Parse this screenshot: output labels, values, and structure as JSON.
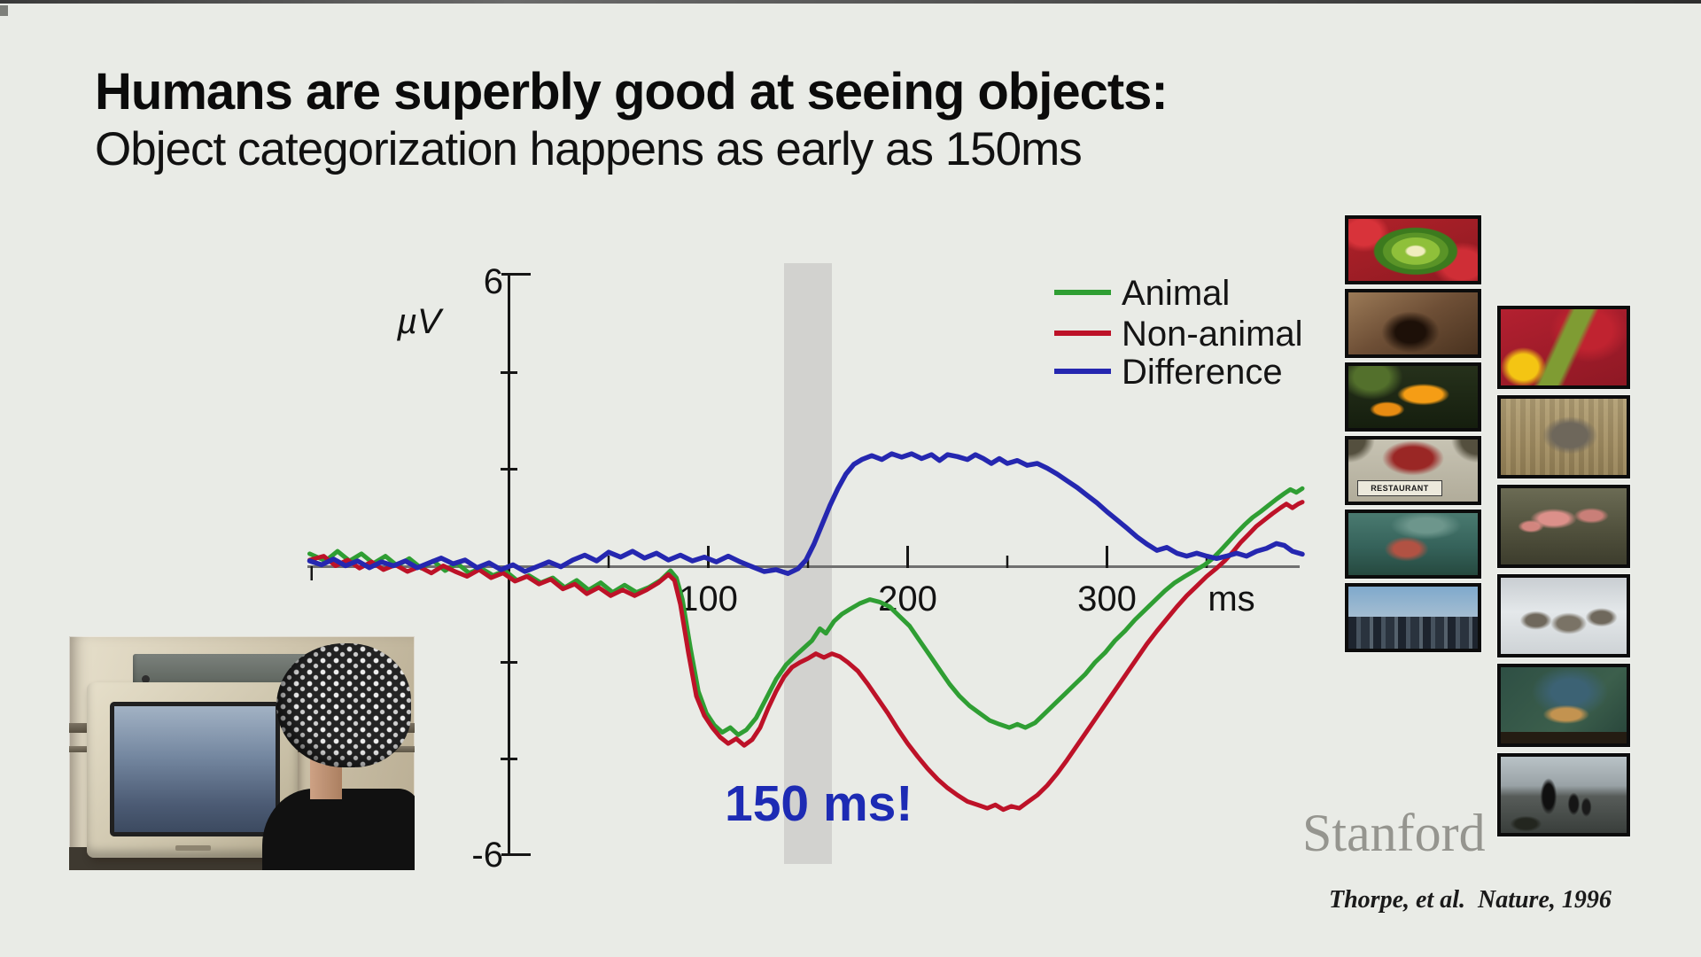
{
  "slide": {
    "title_line1": "Humans are superbly good at seeing objects:",
    "title_line2": "Object categorization happens as early as 150ms",
    "annotation_150ms": "150 ms!",
    "watermark": "Stanford",
    "citation": "Thorpe, et al.  Nature, 1996"
  },
  "chart_data": {
    "type": "line",
    "title": "",
    "xlabel": "ms",
    "ylabel": "µV",
    "xlim": [
      -100,
      400
    ],
    "ylim": [
      -6,
      6
    ],
    "grid": false,
    "legend_position": "top-right",
    "y_top_label": "6",
    "y_bottom_label": "-6",
    "x_unit": "ms",
    "x_tick_labels": [
      "100",
      "200",
      "300"
    ],
    "x_ticks_major": [
      100,
      200,
      300
    ],
    "x_ticks_minor": [
      50,
      150,
      250,
      350
    ],
    "y_ticks": [
      -4,
      -2,
      2,
      4
    ],
    "highlight_band_ms": [
      138,
      162
    ],
    "series": [
      {
        "name": "Animal",
        "color": "#2f9e33",
        "points": [
          [
            -100,
            0.25
          ],
          [
            -92,
            0.1
          ],
          [
            -86,
            0.3
          ],
          [
            -80,
            0.1
          ],
          [
            -74,
            0.25
          ],
          [
            -68,
            0.05
          ],
          [
            -62,
            0.2
          ],
          [
            -56,
            0.0
          ],
          [
            -50,
            0.15
          ],
          [
            -44,
            -0.05
          ],
          [
            -38,
            0.1
          ],
          [
            -32,
            -0.1
          ],
          [
            -26,
            0.05
          ],
          [
            -20,
            -0.15
          ],
          [
            -14,
            -0.05
          ],
          [
            -8,
            -0.2
          ],
          [
            -2,
            -0.1
          ],
          [
            4,
            -0.3
          ],
          [
            10,
            -0.2
          ],
          [
            16,
            -0.35
          ],
          [
            22,
            -0.25
          ],
          [
            28,
            -0.45
          ],
          [
            34,
            -0.3
          ],
          [
            40,
            -0.5
          ],
          [
            46,
            -0.35
          ],
          [
            52,
            -0.55
          ],
          [
            58,
            -0.4
          ],
          [
            64,
            -0.55
          ],
          [
            70,
            -0.45
          ],
          [
            76,
            -0.3
          ],
          [
            81,
            -0.1
          ],
          [
            84,
            -0.25
          ],
          [
            87,
            -0.7
          ],
          [
            91,
            -1.7
          ],
          [
            95,
            -2.6
          ],
          [
            99,
            -3.05
          ],
          [
            103,
            -3.3
          ],
          [
            107,
            -3.45
          ],
          [
            111,
            -3.35
          ],
          [
            115,
            -3.5
          ],
          [
            119,
            -3.4
          ],
          [
            124,
            -3.15
          ],
          [
            129,
            -2.75
          ],
          [
            134,
            -2.35
          ],
          [
            139,
            -2.05
          ],
          [
            144,
            -1.85
          ],
          [
            148,
            -1.7
          ],
          [
            152,
            -1.55
          ],
          [
            156,
            -1.3
          ],
          [
            159,
            -1.4
          ],
          [
            163,
            -1.15
          ],
          [
            167,
            -1.0
          ],
          [
            171,
            -0.9
          ],
          [
            176,
            -0.78
          ],
          [
            181,
            -0.7
          ],
          [
            186,
            -0.75
          ],
          [
            191,
            -0.85
          ],
          [
            196,
            -1.05
          ],
          [
            201,
            -1.25
          ],
          [
            206,
            -1.55
          ],
          [
            211,
            -1.85
          ],
          [
            216,
            -2.15
          ],
          [
            221,
            -2.45
          ],
          [
            226,
            -2.7
          ],
          [
            231,
            -2.9
          ],
          [
            236,
            -3.05
          ],
          [
            241,
            -3.2
          ],
          [
            246,
            -3.28
          ],
          [
            251,
            -3.35
          ],
          [
            255,
            -3.28
          ],
          [
            259,
            -3.35
          ],
          [
            264,
            -3.25
          ],
          [
            269,
            -3.05
          ],
          [
            274,
            -2.85
          ],
          [
            279,
            -2.65
          ],
          [
            284,
            -2.45
          ],
          [
            289,
            -2.25
          ],
          [
            294,
            -2.0
          ],
          [
            299,
            -1.8
          ],
          [
            304,
            -1.55
          ],
          [
            309,
            -1.35
          ],
          [
            314,
            -1.12
          ],
          [
            319,
            -0.92
          ],
          [
            324,
            -0.72
          ],
          [
            329,
            -0.52
          ],
          [
            334,
            -0.35
          ],
          [
            339,
            -0.22
          ],
          [
            344,
            -0.1
          ],
          [
            349,
            0.02
          ],
          [
            353,
            0.15
          ],
          [
            357,
            0.32
          ],
          [
            361,
            0.5
          ],
          [
            365,
            0.68
          ],
          [
            369,
            0.85
          ],
          [
            373,
            1.0
          ],
          [
            377,
            1.12
          ],
          [
            381,
            1.25
          ],
          [
            385,
            1.38
          ],
          [
            389,
            1.5
          ],
          [
            392,
            1.58
          ],
          [
            395,
            1.52
          ],
          [
            398,
            1.6
          ]
        ]
      },
      {
        "name": "Non-animal",
        "color": "#bd1228",
        "points": [
          [
            -100,
            0.12
          ],
          [
            -93,
            0.2
          ],
          [
            -87,
            0.0
          ],
          [
            -81,
            0.12
          ],
          [
            -75,
            -0.05
          ],
          [
            -69,
            0.08
          ],
          [
            -63,
            -0.08
          ],
          [
            -57,
            0.02
          ],
          [
            -51,
            -0.12
          ],
          [
            -45,
            -0.02
          ],
          [
            -39,
            -0.15
          ],
          [
            -33,
            0.0
          ],
          [
            -27,
            -0.12
          ],
          [
            -21,
            -0.22
          ],
          [
            -15,
            -0.08
          ],
          [
            -9,
            -0.25
          ],
          [
            -3,
            -0.15
          ],
          [
            3,
            -0.32
          ],
          [
            9,
            -0.22
          ],
          [
            15,
            -0.38
          ],
          [
            21,
            -0.28
          ],
          [
            27,
            -0.48
          ],
          [
            33,
            -0.38
          ],
          [
            39,
            -0.58
          ],
          [
            45,
            -0.45
          ],
          [
            51,
            -0.62
          ],
          [
            57,
            -0.5
          ],
          [
            63,
            -0.62
          ],
          [
            69,
            -0.5
          ],
          [
            75,
            -0.35
          ],
          [
            80,
            -0.18
          ],
          [
            83,
            -0.3
          ],
          [
            86,
            -0.8
          ],
          [
            90,
            -1.8
          ],
          [
            94,
            -2.7
          ],
          [
            98,
            -3.1
          ],
          [
            102,
            -3.35
          ],
          [
            106,
            -3.55
          ],
          [
            110,
            -3.68
          ],
          [
            114,
            -3.58
          ],
          [
            118,
            -3.72
          ],
          [
            122,
            -3.6
          ],
          [
            126,
            -3.35
          ],
          [
            130,
            -2.95
          ],
          [
            134,
            -2.6
          ],
          [
            138,
            -2.3
          ],
          [
            142,
            -2.1
          ],
          [
            146,
            -2.0
          ],
          [
            150,
            -1.92
          ],
          [
            154,
            -1.82
          ],
          [
            158,
            -1.9
          ],
          [
            162,
            -1.82
          ],
          [
            166,
            -1.88
          ],
          [
            170,
            -2.0
          ],
          [
            175,
            -2.18
          ],
          [
            180,
            -2.45
          ],
          [
            185,
            -2.75
          ],
          [
            190,
            -3.05
          ],
          [
            195,
            -3.38
          ],
          [
            200,
            -3.68
          ],
          [
            205,
            -3.95
          ],
          [
            210,
            -4.2
          ],
          [
            215,
            -4.42
          ],
          [
            220,
            -4.6
          ],
          [
            225,
            -4.75
          ],
          [
            230,
            -4.88
          ],
          [
            235,
            -4.95
          ],
          [
            240,
            -5.02
          ],
          [
            244,
            -4.95
          ],
          [
            248,
            -5.05
          ],
          [
            252,
            -4.98
          ],
          [
            256,
            -5.02
          ],
          [
            260,
            -4.9
          ],
          [
            265,
            -4.75
          ],
          [
            270,
            -4.55
          ],
          [
            275,
            -4.3
          ],
          [
            280,
            -4.02
          ],
          [
            285,
            -3.72
          ],
          [
            290,
            -3.42
          ],
          [
            295,
            -3.12
          ],
          [
            300,
            -2.82
          ],
          [
            305,
            -2.52
          ],
          [
            310,
            -2.22
          ],
          [
            315,
            -1.92
          ],
          [
            320,
            -1.62
          ],
          [
            325,
            -1.35
          ],
          [
            330,
            -1.1
          ],
          [
            335,
            -0.85
          ],
          [
            340,
            -0.62
          ],
          [
            345,
            -0.42
          ],
          [
            350,
            -0.22
          ],
          [
            355,
            -0.05
          ],
          [
            359,
            0.1
          ],
          [
            363,
            0.28
          ],
          [
            367,
            0.48
          ],
          [
            371,
            0.65
          ],
          [
            375,
            0.82
          ],
          [
            379,
            0.95
          ],
          [
            383,
            1.08
          ],
          [
            387,
            1.2
          ],
          [
            390,
            1.28
          ],
          [
            393,
            1.2
          ],
          [
            396,
            1.28
          ],
          [
            398,
            1.32
          ]
        ]
      },
      {
        "name": "Difference",
        "color": "#2527b0",
        "points": [
          [
            -100,
            0.1
          ],
          [
            -94,
            0.02
          ],
          [
            -88,
            0.14
          ],
          [
            -82,
            0.0
          ],
          [
            -76,
            0.1
          ],
          [
            -70,
            -0.04
          ],
          [
            -64,
            0.08
          ],
          [
            -58,
            0.0
          ],
          [
            -52,
            0.1
          ],
          [
            -46,
            -0.04
          ],
          [
            -40,
            0.06
          ],
          [
            -34,
            0.16
          ],
          [
            -28,
            0.04
          ],
          [
            -22,
            0.12
          ],
          [
            -16,
            -0.04
          ],
          [
            -10,
            0.06
          ],
          [
            -4,
            -0.08
          ],
          [
            2,
            0.02
          ],
          [
            8,
            -0.12
          ],
          [
            14,
            -0.02
          ],
          [
            20,
            0.08
          ],
          [
            26,
            -0.02
          ],
          [
            32,
            0.12
          ],
          [
            38,
            0.22
          ],
          [
            44,
            0.1
          ],
          [
            50,
            0.28
          ],
          [
            56,
            0.18
          ],
          [
            62,
            0.3
          ],
          [
            68,
            0.16
          ],
          [
            74,
            0.26
          ],
          [
            80,
            0.12
          ],
          [
            86,
            0.22
          ],
          [
            92,
            0.1
          ],
          [
            98,
            0.18
          ],
          [
            104,
            0.08
          ],
          [
            110,
            0.2
          ],
          [
            116,
            0.08
          ],
          [
            122,
            -0.02
          ],
          [
            128,
            -0.12
          ],
          [
            134,
            -0.08
          ],
          [
            140,
            -0.16
          ],
          [
            145,
            -0.06
          ],
          [
            149,
            0.12
          ],
          [
            153,
            0.45
          ],
          [
            157,
            0.85
          ],
          [
            161,
            1.25
          ],
          [
            165,
            1.6
          ],
          [
            169,
            1.9
          ],
          [
            173,
            2.1
          ],
          [
            177,
            2.2
          ],
          [
            182,
            2.28
          ],
          [
            187,
            2.2
          ],
          [
            192,
            2.32
          ],
          [
            197,
            2.25
          ],
          [
            202,
            2.32
          ],
          [
            207,
            2.22
          ],
          [
            212,
            2.3
          ],
          [
            216,
            2.18
          ],
          [
            220,
            2.3
          ],
          [
            225,
            2.26
          ],
          [
            230,
            2.2
          ],
          [
            234,
            2.3
          ],
          [
            238,
            2.22
          ],
          [
            242,
            2.12
          ],
          [
            246,
            2.22
          ],
          [
            250,
            2.12
          ],
          [
            255,
            2.18
          ],
          [
            260,
            2.08
          ],
          [
            265,
            2.12
          ],
          [
            270,
            2.02
          ],
          [
            275,
            1.9
          ],
          [
            280,
            1.76
          ],
          [
            285,
            1.62
          ],
          [
            290,
            1.46
          ],
          [
            295,
            1.3
          ],
          [
            300,
            1.12
          ],
          [
            305,
            0.95
          ],
          [
            310,
            0.78
          ],
          [
            315,
            0.6
          ],
          [
            320,
            0.45
          ],
          [
            325,
            0.32
          ],
          [
            330,
            0.38
          ],
          [
            335,
            0.26
          ],
          [
            340,
            0.2
          ],
          [
            345,
            0.26
          ],
          [
            350,
            0.2
          ],
          [
            355,
            0.15
          ],
          [
            360,
            0.2
          ],
          [
            365,
            0.26
          ],
          [
            370,
            0.2
          ],
          [
            375,
            0.3
          ],
          [
            380,
            0.36
          ],
          [
            385,
            0.46
          ],
          [
            389,
            0.42
          ],
          [
            393,
            0.3
          ],
          [
            398,
            0.24
          ]
        ]
      }
    ]
  },
  "photos": {
    "restaurant_sign_text": "RESTAURANT",
    "eeg_photo": "subject wearing EEG electrode net in front of CRT monitor",
    "strip1_items": [
      "kiwi-strawberries",
      "cave-rocks",
      "orange-fungus",
      "restaurant-sign",
      "underwater-reef",
      "city-skyline"
    ],
    "strip2_items": [
      "grasshopper-flowers",
      "elephant-brush",
      "flamingos",
      "wolves-snow",
      "mongoose-log",
      "penguins-rocks"
    ]
  }
}
